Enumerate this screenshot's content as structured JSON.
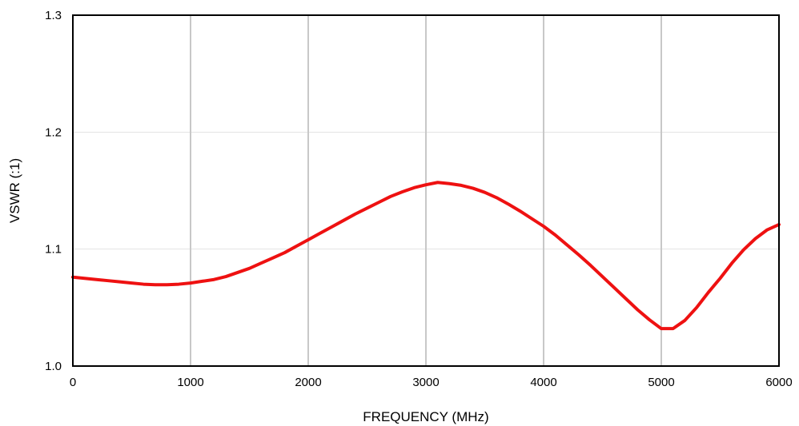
{
  "chart_data": {
    "type": "line",
    "title": "",
    "xlabel": "FREQUENCY (MHz)",
    "ylabel": "VSWR (:1)",
    "xlim": [
      0,
      6000
    ],
    "ylim": [
      1.0,
      1.3
    ],
    "x_ticks": [
      0,
      1000,
      2000,
      3000,
      4000,
      5000,
      6000
    ],
    "x_tick_labels": [
      "0",
      "1000",
      "2000",
      "3000",
      "4000",
      "5000",
      "6000"
    ],
    "y_ticks": [
      1.0,
      1.1,
      1.2,
      1.3
    ],
    "y_tick_labels": [
      "1.0",
      "1.1",
      "1.2",
      "1.3"
    ],
    "grid": {
      "vertical": true,
      "horizontal": true
    },
    "colors": {
      "line": "#ee1111",
      "vertical_grid": "#c8c8c8",
      "horizontal_grid": "#e2e2e2",
      "frame": "#000000"
    },
    "series": [
      {
        "x": [
          0,
          100,
          200,
          300,
          400,
          500,
          600,
          700,
          800,
          900,
          1000,
          1100,
          1200,
          1300,
          1400,
          1500,
          1600,
          1700,
          1800,
          1900,
          2000,
          2100,
          2200,
          2300,
          2400,
          2500,
          2600,
          2700,
          2800,
          2900,
          3000,
          3100,
          3200,
          3300,
          3400,
          3500,
          3600,
          3700,
          3800,
          3900,
          4000,
          4100,
          4200,
          4300,
          4400,
          4500,
          4600,
          4700,
          4800,
          4900,
          5000,
          5100,
          5200,
          5300,
          5400,
          5500,
          5600,
          5700,
          5800,
          5900,
          6000
        ],
        "values": [
          1.076,
          1.075,
          1.074,
          1.073,
          1.072,
          1.071,
          1.07,
          1.0695,
          1.0695,
          1.07,
          1.071,
          1.0725,
          1.074,
          1.0765,
          1.08,
          1.0835,
          1.088,
          1.0925,
          1.097,
          1.1025,
          1.108,
          1.1135,
          1.119,
          1.1245,
          1.13,
          1.135,
          1.14,
          1.145,
          1.149,
          1.1525,
          1.155,
          1.157,
          1.156,
          1.1545,
          1.152,
          1.1485,
          1.144,
          1.1385,
          1.1325,
          1.126,
          1.1195,
          1.112,
          1.1035,
          1.095,
          1.086,
          1.0765,
          1.067,
          1.0575,
          1.048,
          1.0395,
          1.032,
          1.032,
          1.039,
          1.05,
          1.063,
          1.075,
          1.088,
          1.0995,
          1.109,
          1.1165,
          1.121
        ]
      }
    ]
  }
}
